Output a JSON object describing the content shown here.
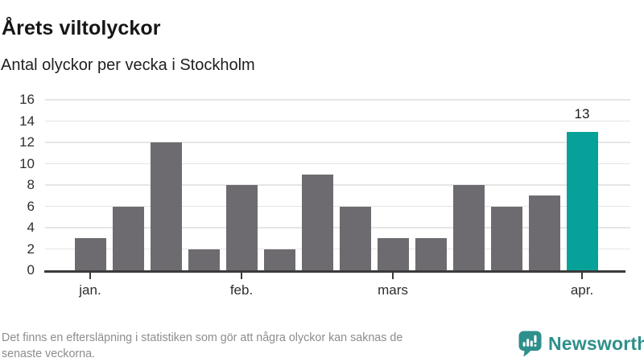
{
  "chart_data": {
    "type": "bar",
    "title": "Årets viltolyckor",
    "subtitle": "Antal olyckor per vecka i Stockholm",
    "values": [
      3,
      6,
      12,
      2,
      8,
      2,
      9,
      6,
      3,
      3,
      8,
      6,
      7,
      13
    ],
    "highlight_index": 13,
    "annotation": {
      "bar_index": 13,
      "label": "13"
    },
    "x_ticks": [
      {
        "label": "jan.",
        "bar_index": 0
      },
      {
        "label": "feb.",
        "bar_index": 4
      },
      {
        "label": "mars",
        "bar_index": 8
      },
      {
        "label": "apr.",
        "bar_index": 13
      }
    ],
    "y_ticks": [
      0,
      2,
      4,
      6,
      8,
      10,
      12,
      14,
      16
    ],
    "ylim": [
      0,
      16
    ],
    "grid": true,
    "legend": "none",
    "colors": {
      "bar": "#6e6b70",
      "highlight": "#06a29a",
      "axis": "#3b3b3b",
      "gridline": "#e5e5e5",
      "tick_label": "#2e2e2e"
    }
  },
  "footer": {
    "disclaimer_line1": "Det finns en eftersläpning i statistiken som gör att några olyckor kan saknas de",
    "disclaimer_line2": "senaste veckorna.",
    "brand": {
      "name": "Newsworthy",
      "color": "#2e8f8b"
    }
  }
}
